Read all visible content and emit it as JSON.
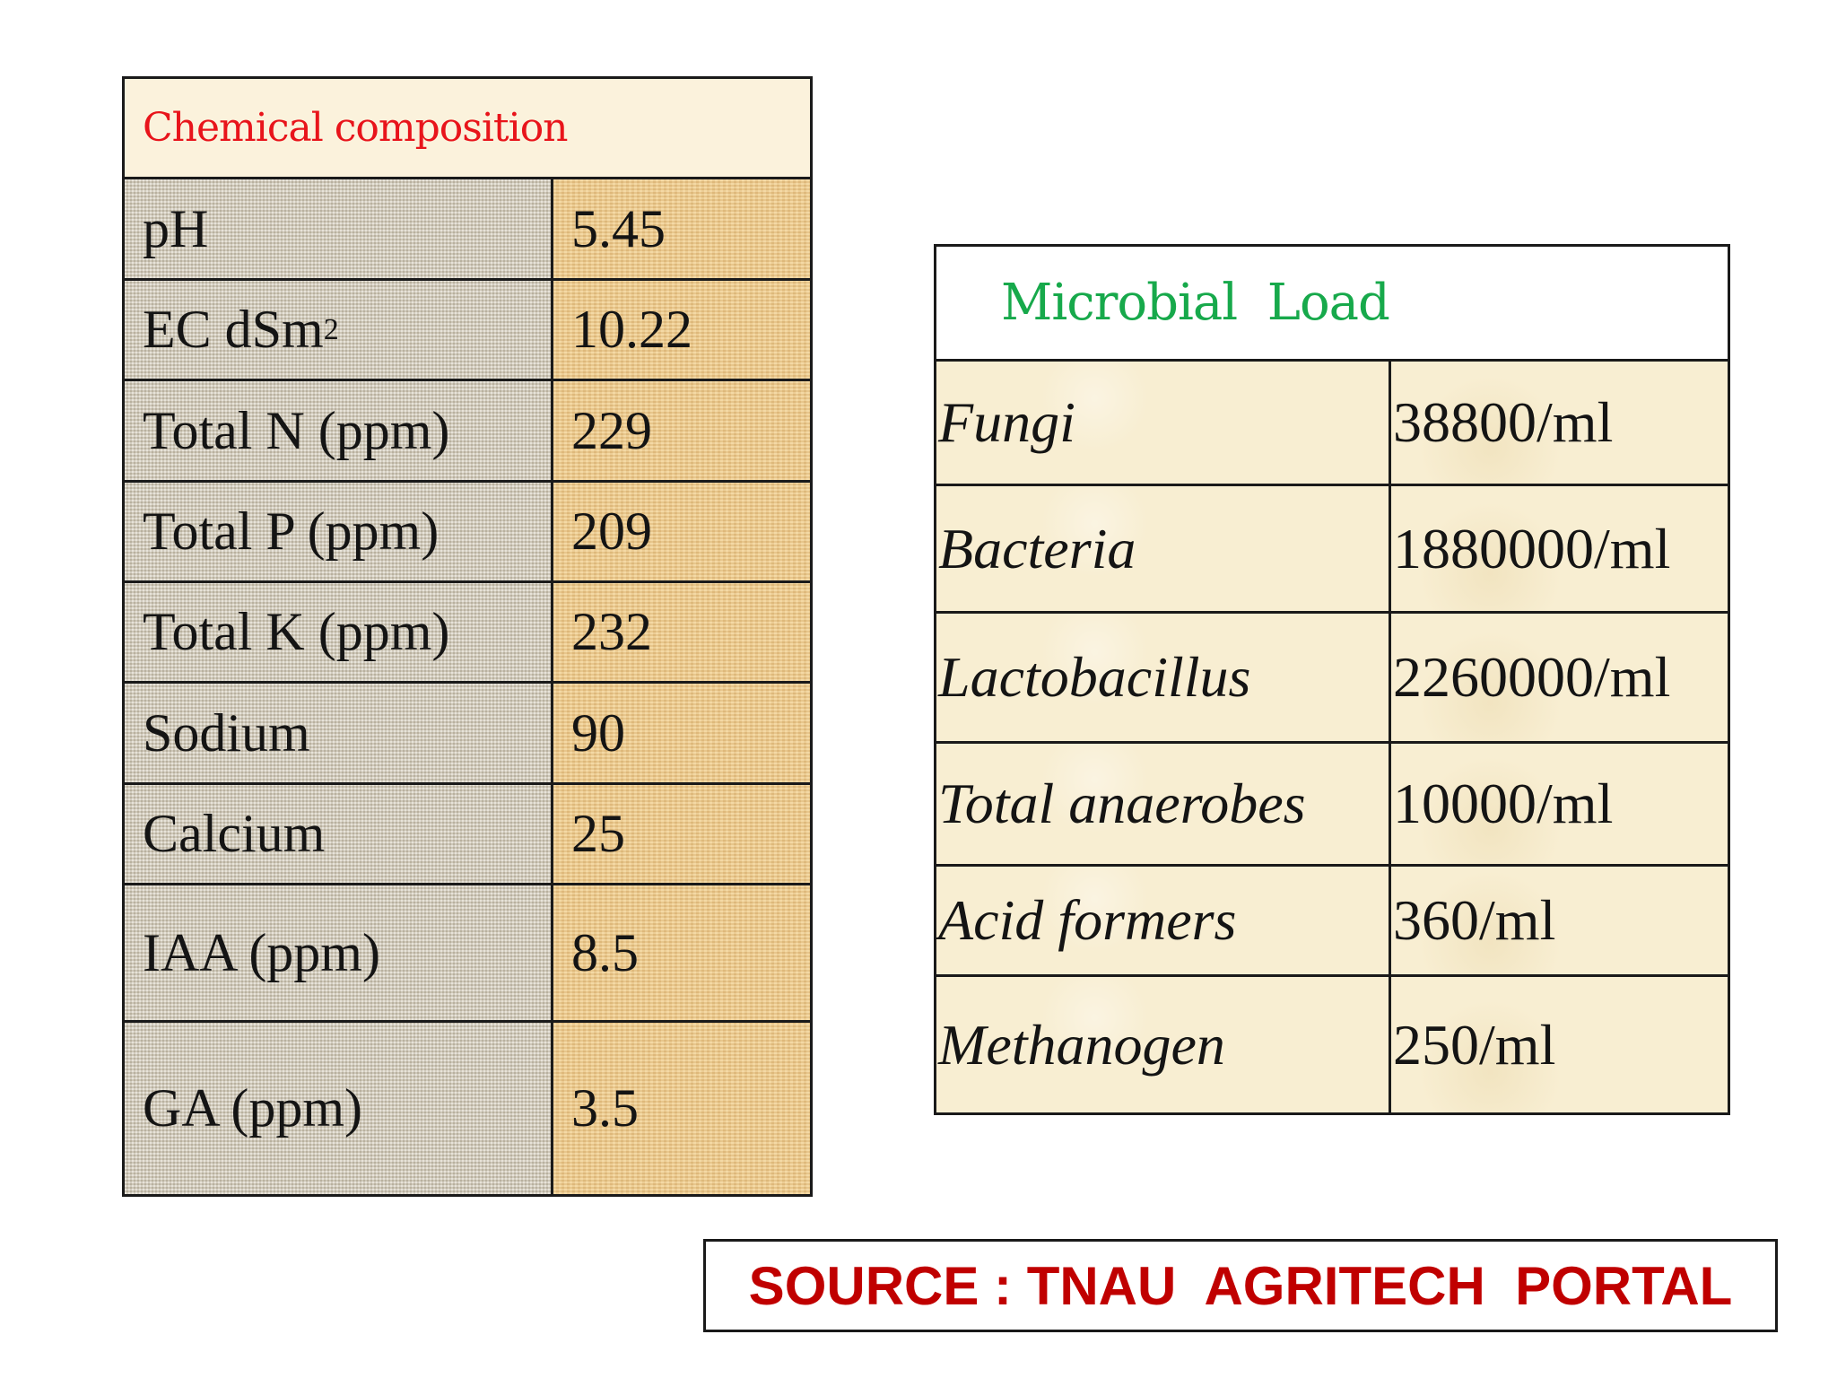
{
  "chemical_composition": {
    "title": "Chemical composition",
    "rows": [
      {
        "label": "pH",
        "value": "5.45"
      },
      {
        "label": "EC dSm",
        "label_sup": "2",
        "value": "10.22"
      },
      {
        "label": "Total N (ppm)",
        "value": "229"
      },
      {
        "label": "Total P (ppm)",
        "value": "209"
      },
      {
        "label": "Total K (ppm)",
        "value": "232"
      },
      {
        "label": "Sodium",
        "value": "90"
      },
      {
        "label": "Calcium",
        "value": "25"
      },
      {
        "label": "IAA (ppm)",
        "value": "8.5"
      },
      {
        "label": "GA (ppm)",
        "value": "3.5"
      }
    ]
  },
  "microbial_load": {
    "title": "Microbial  Load",
    "rows": [
      {
        "label": "Fungi",
        "value": "38800/ml"
      },
      {
        "label": "Bacteria",
        "value": "1880000/ml"
      },
      {
        "label": "Lactobacillus",
        "value": "2260000/ml"
      },
      {
        "label": "Total anaerobes",
        "value": "10000/ml"
      },
      {
        "label": "Acid formers",
        "value": "360/ml"
      },
      {
        "label": "Methanogen",
        "value": "250/ml"
      }
    ]
  },
  "source": {
    "text": "SOURCE : TNAU  AGRITECH  PORTAL"
  },
  "colors": {
    "chem_title": "#e8141b",
    "micro_title": "#17a94b",
    "source_text": "#c00000"
  }
}
